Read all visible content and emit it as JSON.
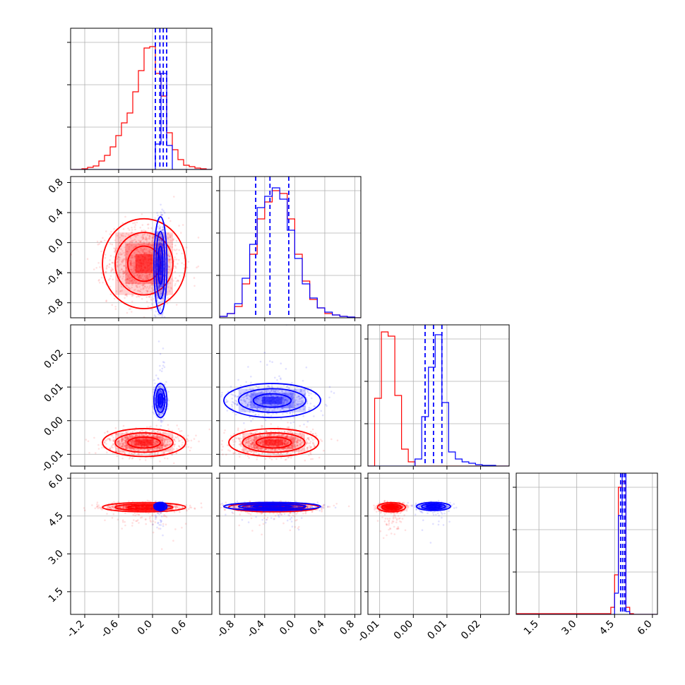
{
  "chart_data": {
    "type": "corner",
    "title": "",
    "grid": true,
    "series": [
      {
        "color": "#ff0000"
      },
      {
        "color": "#0000ff"
      }
    ],
    "params": [
      {
        "range": [
          -1.45,
          1.05
        ],
        "ticks": [
          "-1.2",
          "-0.6",
          "0.0",
          "0.6"
        ],
        "tick_values": [
          -1.2,
          -0.6,
          0.0,
          0.6
        ]
      },
      {
        "range": [
          -1.0,
          0.88
        ],
        "ticks": [
          "-0.8",
          "-0.4",
          "0.0",
          "0.4",
          "0.8"
        ],
        "tick_values": [
          -0.8,
          -0.4,
          0.0,
          0.4,
          0.8
        ]
      },
      {
        "range": [
          -0.0135,
          0.0285
        ],
        "ticks": [
          "-0.01",
          "0.00",
          "0.01",
          "0.02"
        ],
        "tick_values": [
          -0.01,
          0.0,
          0.01,
          0.02
        ]
      },
      {
        "range": [
          0.6,
          6.2
        ],
        "ticks": [
          "1.5",
          "3.0",
          "4.5",
          "6.0"
        ],
        "tick_values": [
          1.5,
          3.0,
          4.5,
          6.0
        ]
      }
    ],
    "histograms": [
      {
        "edges": [
          -1.45,
          -1.35,
          -1.25,
          -1.15,
          -1.05,
          -0.95,
          -0.85,
          -0.75,
          -0.65,
          -0.55,
          -0.45,
          -0.35,
          -0.25,
          -0.15,
          -0.05,
          0.05,
          0.15,
          0.25,
          0.35,
          0.45,
          0.55,
          0.65,
          0.75,
          0.85,
          0.95,
          1.05
        ],
        "red": [
          0.0,
          0.0,
          0.005,
          0.015,
          0.025,
          0.06,
          0.1,
          0.16,
          0.24,
          0.33,
          0.4,
          0.55,
          0.7,
          0.86,
          0.87,
          0.68,
          0.52,
          0.26,
          0.14,
          0.07,
          0.03,
          0.02,
          0.01,
          0.005,
          0.0
        ],
        "blue": [
          0,
          0,
          0,
          0,
          0,
          0,
          0,
          0,
          0,
          0,
          0,
          0,
          0,
          0,
          0,
          0.18,
          0.68,
          0.17,
          0,
          0,
          0,
          0,
          0,
          0,
          0
        ],
        "quantiles": [
          0.05,
          0.13,
          0.19,
          0.25
        ]
      },
      {
        "edges": [
          -1.0,
          -0.9,
          -0.8,
          -0.7,
          -0.6,
          -0.5,
          -0.4,
          -0.3,
          -0.2,
          -0.1,
          0.0,
          0.1,
          0.2,
          0.3,
          0.4,
          0.5,
          0.6,
          0.7,
          0.8,
          0.88
        ],
        "red": [
          0.01,
          0.03,
          0.08,
          0.24,
          0.45,
          0.7,
          0.82,
          0.9,
          0.88,
          0.7,
          0.45,
          0.26,
          0.13,
          0.07,
          0.03,
          0.02,
          0.01,
          0.005,
          0.0
        ],
        "blue": [
          0.01,
          0.03,
          0.1,
          0.28,
          0.52,
          0.78,
          0.86,
          0.92,
          0.84,
          0.62,
          0.42,
          0.24,
          0.14,
          0.07,
          0.04,
          0.02,
          0.01,
          0.005,
          0.0
        ],
        "quantiles": [
          -0.52,
          -0.33,
          -0.08
        ]
      },
      {
        "edges": [
          -0.0135,
          -0.0115,
          -0.0095,
          -0.0075,
          -0.0055,
          -0.0035,
          -0.0015,
          0.0005,
          0.0025,
          0.0045,
          0.0065,
          0.0085,
          0.0105,
          0.0125,
          0.0145,
          0.0165,
          0.0185,
          0.0205,
          0.0225,
          0.0245,
          0.0265,
          0.0285
        ],
        "red": [
          0.0,
          0.48,
          0.95,
          0.92,
          0.5,
          0.12,
          0.03,
          0.0,
          0,
          0,
          0,
          0,
          0,
          0,
          0,
          0,
          0,
          0,
          0,
          0,
          0
        ],
        "blue": [
          0,
          0,
          0,
          0,
          0,
          0,
          0,
          0.05,
          0.35,
          0.7,
          0.93,
          0.45,
          0.1,
          0.05,
          0.03,
          0.02,
          0.01,
          0.005,
          0.005,
          0.0,
          0.0
        ],
        "quantiles": [
          0.0035,
          0.006,
          0.0085
        ]
      },
      {
        "edges": [
          0.6,
          4.35,
          4.5,
          4.65,
          4.8,
          4.95,
          5.1,
          5.25,
          6.2
        ],
        "red": [
          0.005,
          0.05,
          0.28,
          0.9,
          0.94,
          0.05,
          0.005,
          0.0
        ],
        "blue": [
          0.0,
          0.0,
          0.15,
          0.7,
          1.0,
          0.02,
          0.0,
          0.0
        ],
        "quantiles": [
          4.74,
          4.82,
          4.9
        ]
      }
    ],
    "distributions": {
      "red": [
        {
          "mean": -0.15,
          "sd": 0.32
        },
        {
          "mean": -0.28,
          "sd": 0.26
        },
        {
          "mean": -0.0065,
          "sd": 0.0018
        },
        {
          "mean": 4.85,
          "sd": 0.08
        }
      ],
      "blue": [
        {
          "mean": 0.14,
          "sd": 0.05
        },
        {
          "mean": -0.3,
          "sd": 0.28
        },
        {
          "mean": 0.006,
          "sd": 0.0022
        },
        {
          "mean": 4.88,
          "sd": 0.07
        }
      ]
    }
  }
}
